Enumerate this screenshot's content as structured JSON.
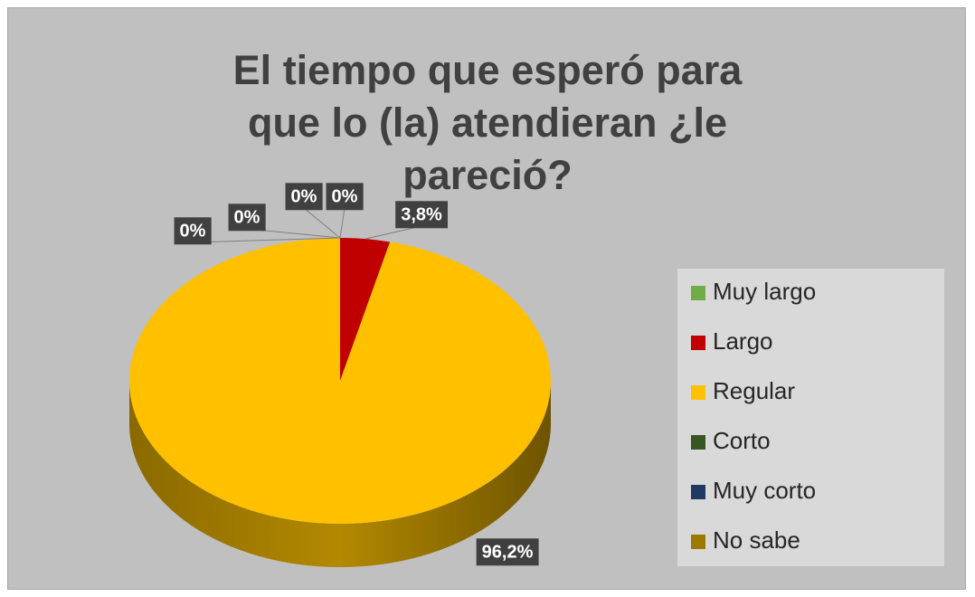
{
  "chart_data": {
    "type": "pie",
    "title": "El tiempo que esperó para que lo (la) atendieran ¿le pareció?",
    "categories": [
      "Muy largo",
      "Largo",
      "Regular",
      "Corto",
      "Muy corto",
      "No sabe"
    ],
    "values": [
      0,
      3.8,
      96.2,
      0,
      0,
      0
    ],
    "value_labels": [
      "0%",
      "3,8%",
      "96,2%",
      "0%",
      "0%",
      "0%"
    ],
    "colors": [
      "#70ad47",
      "#c00000",
      "#ffc000",
      "#375623",
      "#1f3864",
      "#9c7a00"
    ],
    "legend": "right"
  }
}
